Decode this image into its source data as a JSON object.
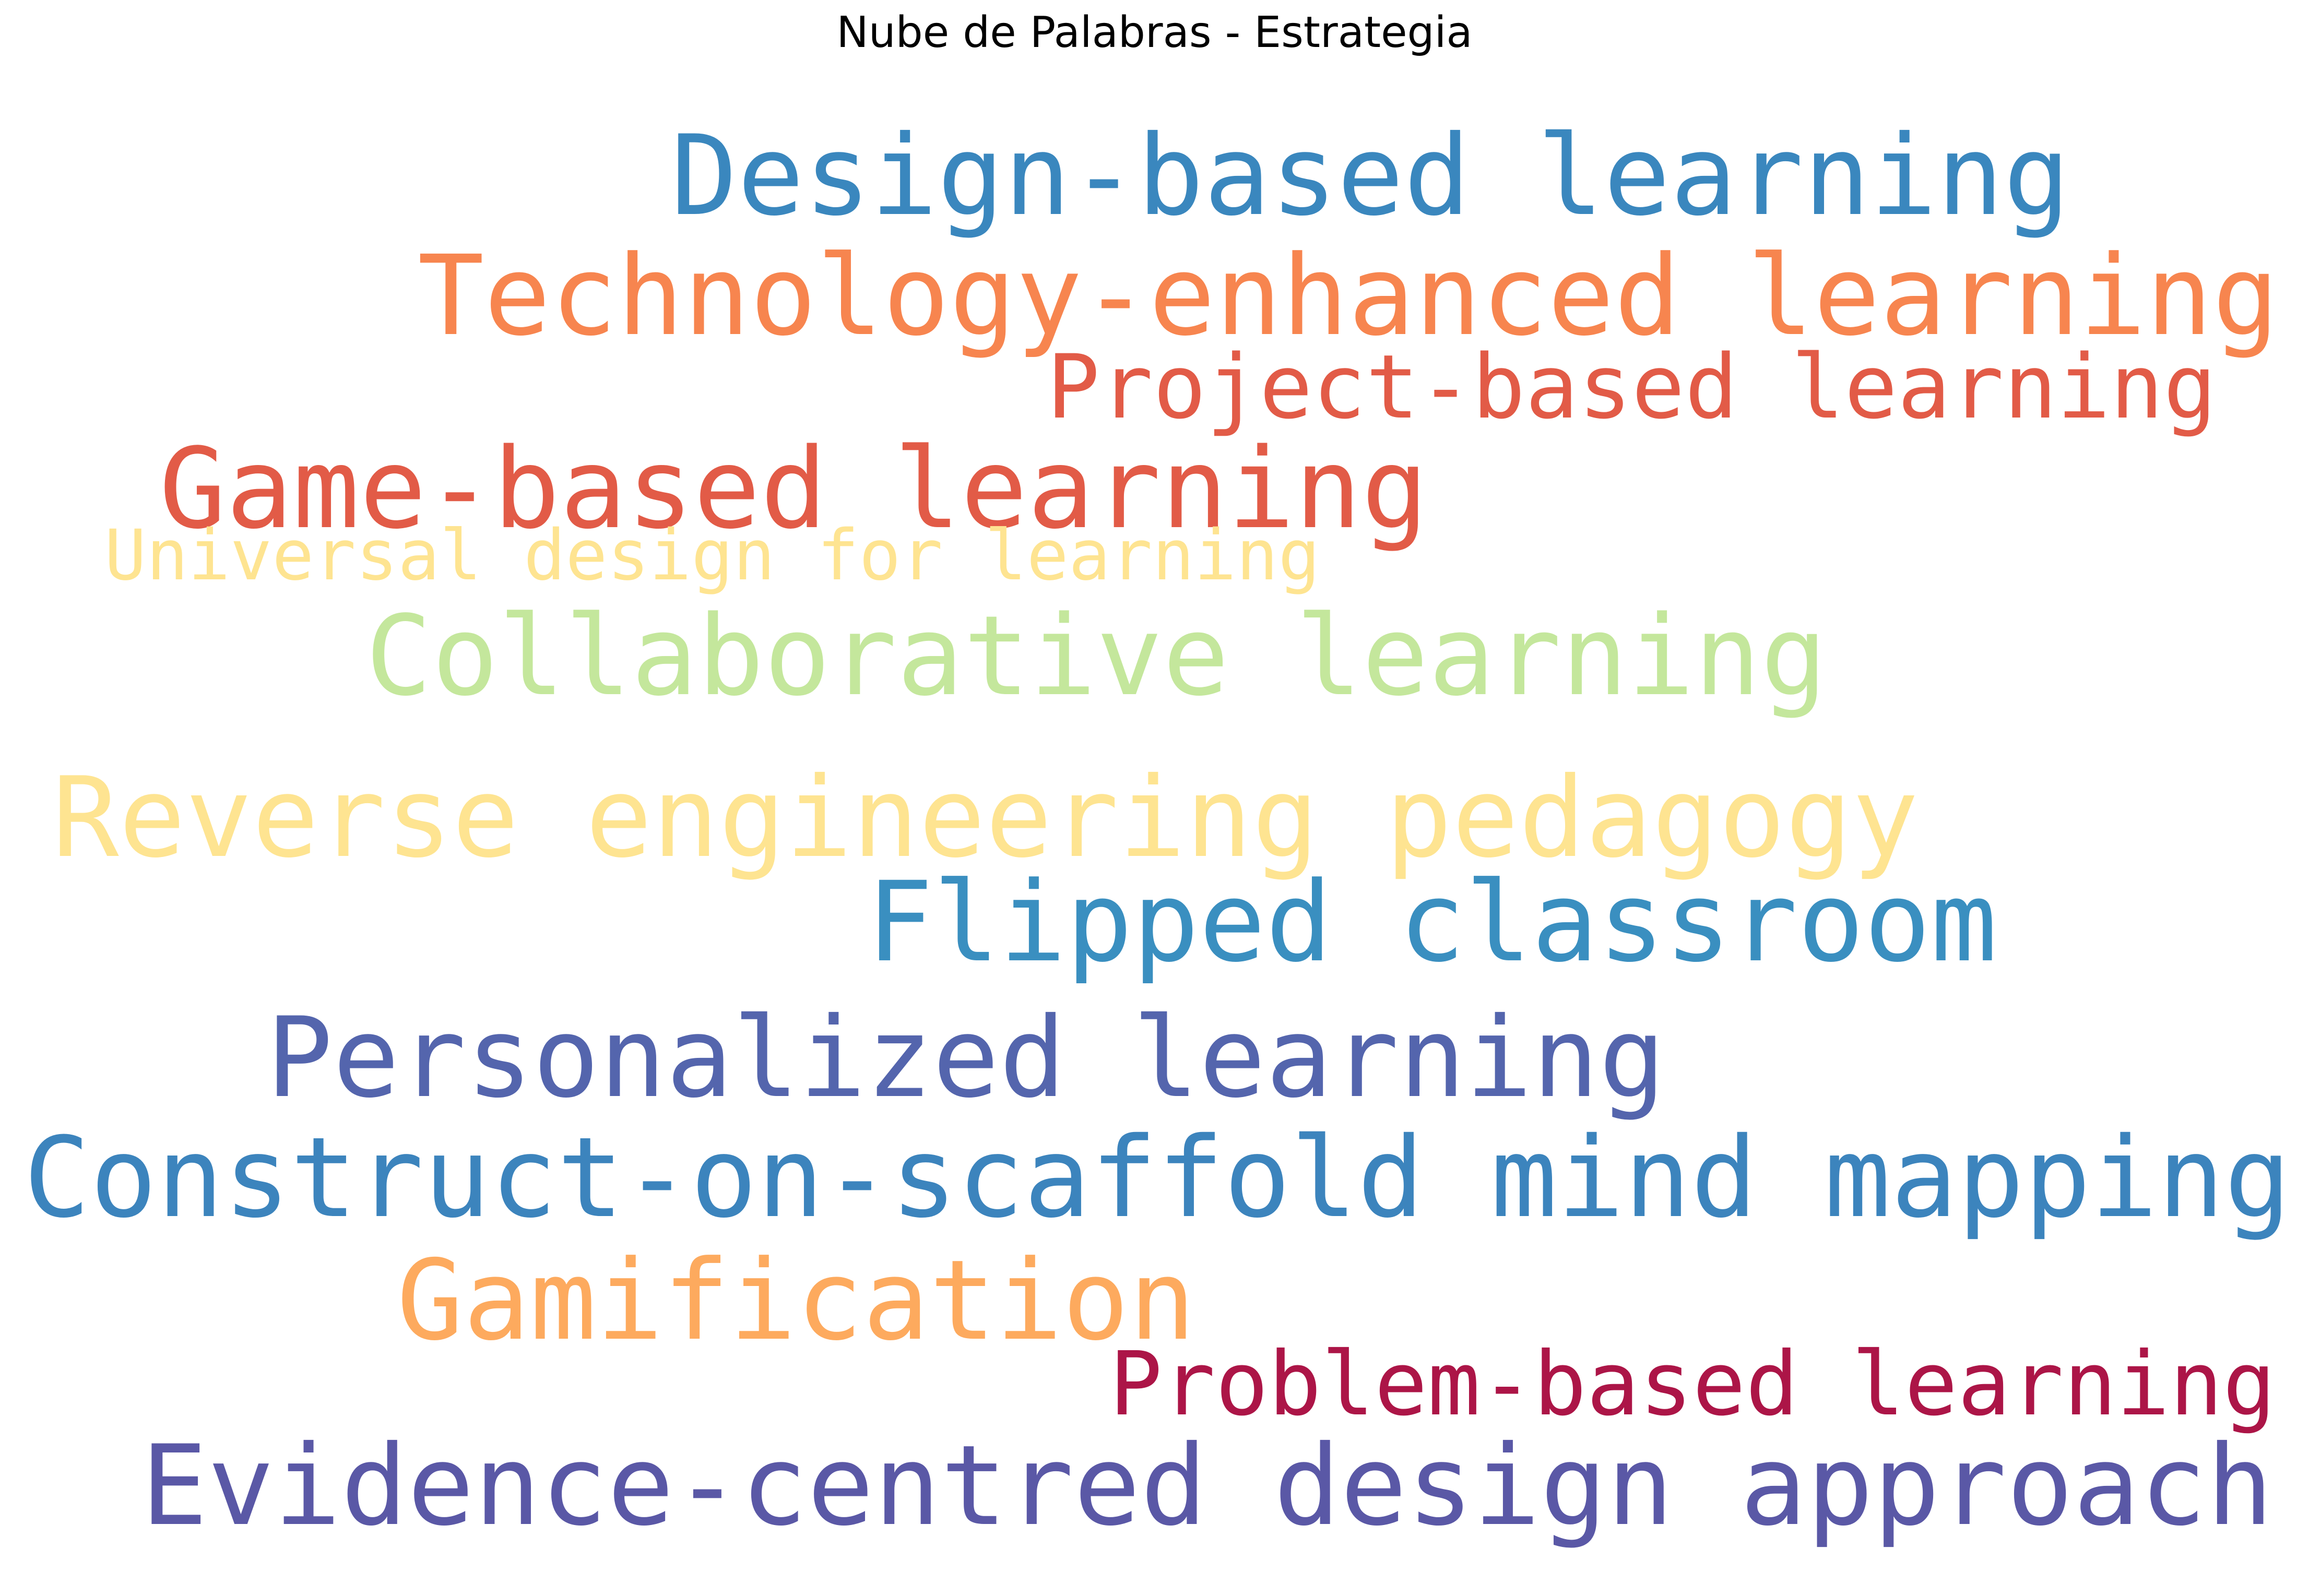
{
  "chart_data": {
    "type": "wordcloud",
    "title": "Nube de Palabras - Estrategia",
    "words": [
      {
        "text": "Design-based learning",
        "color": "#3a87be"
      },
      {
        "text": "Technology-enhanced learning",
        "color": "#f7854f"
      },
      {
        "text": "Project-based learning",
        "color": "#e25b47"
      },
      {
        "text": "Game-based learning",
        "color": "#e25b47"
      },
      {
        "text": "Universal design for learning",
        "color": "#fee491"
      },
      {
        "text": "Collaborative learning",
        "color": "#c4e79c"
      },
      {
        "text": "Reverse engineering pedagogy",
        "color": "#fee491"
      },
      {
        "text": "Flipped classroom",
        "color": "#3a8fc0"
      },
      {
        "text": "Personalized learning",
        "color": "#5465ad"
      },
      {
        "text": "Construct-on-scaffold mind mapping",
        "color": "#3c84bd"
      },
      {
        "text": "Gamification",
        "color": "#fdaa5e"
      },
      {
        "text": "Problem-based learning",
        "color": "#ac1547"
      },
      {
        "text": "Evidence-centred design approach",
        "color": "#5a58a6"
      }
    ]
  }
}
